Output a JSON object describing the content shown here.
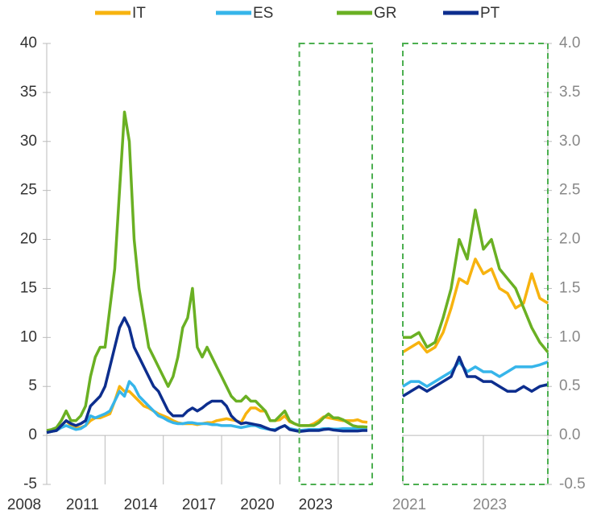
{
  "chart_data": [
    {
      "type": "line",
      "x": [
        2008,
        2008.25,
        2008.5,
        2008.75,
        2009,
        2009.25,
        2009.5,
        2009.75,
        2010,
        2010.25,
        2010.5,
        2010.75,
        2011,
        2011.25,
        2011.5,
        2011.75,
        2012,
        2012.25,
        2012.5,
        2012.75,
        2013,
        2013.25,
        2013.5,
        2013.75,
        2014,
        2014.25,
        2014.5,
        2014.75,
        2015,
        2015.25,
        2015.5,
        2015.75,
        2016,
        2016.25,
        2016.5,
        2016.75,
        2017,
        2017.25,
        2017.5,
        2017.75,
        2018,
        2018.25,
        2018.5,
        2018.75,
        2019,
        2019.25,
        2019.5,
        2019.75,
        2020,
        2020.25,
        2020.5,
        2020.75,
        2021,
        2021.25,
        2021.5,
        2021.75,
        2022,
        2022.25,
        2022.5,
        2022.75,
        2023,
        2023.25,
        2023.5,
        2023.75,
        2024,
        2024.25,
        2024.5
      ],
      "series": [
        {
          "name": "IT",
          "color": "#f7b30f",
          "values": [
            0.3,
            0.4,
            0.5,
            1.0,
            1.5,
            1.0,
            0.8,
            0.8,
            1.0,
            1.5,
            1.8,
            1.8,
            2,
            2.2,
            3.5,
            5,
            4.5,
            4.5,
            4,
            3.5,
            3,
            2.8,
            2.5,
            2.2,
            2,
            1.8,
            1.5,
            1.3,
            1.2,
            1.2,
            1.2,
            1.1,
            1.2,
            1.3,
            1.3,
            1.5,
            1.6,
            1.7,
            1.6,
            1.5,
            1.3,
            2.2,
            2.8,
            2.8,
            2.5,
            2.5,
            1.5,
            1.5,
            1.6,
            2.0,
            1.4,
            1.2,
            1.0,
            1.0,
            1.0,
            1.2,
            1.5,
            1.9,
            1.8,
            1.7,
            1.6,
            1.5,
            1.5,
            1.5,
            1.6,
            1.4,
            1.35
          ]
        },
        {
          "name": "ES",
          "color": "#36b5ea",
          "values": [
            0.3,
            0.4,
            0.5,
            0.8,
            1.0,
            0.8,
            0.6,
            0.7,
            1.0,
            2.0,
            1.8,
            2.0,
            2.2,
            2.5,
            3.5,
            4.5,
            4,
            5.5,
            5,
            4,
            3.5,
            3,
            2.5,
            2,
            1.8,
            1.5,
            1.3,
            1.2,
            1.2,
            1.3,
            1.3,
            1.2,
            1.2,
            1.2,
            1.1,
            1.1,
            1.0,
            1.0,
            1.0,
            0.9,
            0.8,
            0.9,
            1.0,
            1.0,
            0.8,
            0.7,
            0.6,
            0.6,
            0.8,
            1.0,
            0.7,
            0.6,
            0.5,
            0.55,
            0.6,
            0.6,
            0.6,
            0.7,
            0.7,
            0.65,
            0.65,
            0.7,
            0.7,
            0.7,
            0.72,
            0.75,
            0.75
          ]
        },
        {
          "name": "GR",
          "color": "#6ab023",
          "values": [
            0.5,
            0.6,
            0.8,
            1.5,
            2.5,
            1.5,
            1.5,
            2.0,
            3,
            6,
            8,
            9,
            9,
            13,
            17,
            25,
            33,
            30,
            20,
            15,
            12,
            9,
            8,
            7,
            6,
            5,
            6,
            8,
            11,
            12,
            15,
            9,
            8,
            9,
            8,
            7,
            6,
            5,
            4,
            3.5,
            3.5,
            4,
            3.5,
            3.5,
            3,
            2.5,
            1.5,
            1.5,
            2,
            2.5,
            1.5,
            1.2,
            1,
            1,
            1,
            1,
            1.3,
            1.8,
            2.2,
            1.8,
            1.8,
            1.6,
            1.3,
            1.0,
            0.9,
            0.9,
            0.85
          ]
        },
        {
          "name": "PT",
          "color": "#0d2e8e",
          "values": [
            0.3,
            0.4,
            0.5,
            1.0,
            1.5,
            1.2,
            1.0,
            1.2,
            1.5,
            3,
            3.5,
            4,
            5,
            7,
            9,
            11,
            12,
            11,
            9,
            8,
            7,
            6,
            5,
            4.5,
            3.5,
            2.5,
            2,
            2,
            2,
            2.5,
            2.8,
            2.5,
            2.8,
            3.2,
            3.5,
            3.5,
            3.5,
            3,
            2,
            1.5,
            1.2,
            1.3,
            1.2,
            1.1,
            1.0,
            0.8,
            0.6,
            0.5,
            0.8,
            1.0,
            0.6,
            0.5,
            0.4,
            0.45,
            0.5,
            0.5,
            0.5,
            0.6,
            0.65,
            0.55,
            0.5,
            0.45,
            0.45,
            0.45,
            0.45,
            0.5,
            0.5
          ]
        }
      ],
      "xlim": [
        2008,
        2024.75
      ],
      "xticks": [
        2008,
        2011,
        2014,
        2017,
        2020,
        2023
      ],
      "ylim": [
        -5,
        40
      ],
      "yticks": [
        -5,
        0,
        5,
        10,
        15,
        20,
        25,
        30,
        35,
        40
      ]
    },
    {
      "type": "line",
      "x": [
        2021,
        2021.2,
        2021.4,
        2021.6,
        2021.8,
        2022,
        2022.2,
        2022.4,
        2022.6,
        2022.8,
        2023,
        2023.2,
        2023.4,
        2023.6,
        2023.8,
        2024,
        2024.2,
        2024.4,
        2024.6
      ],
      "series": [
        {
          "color": "#f7b30f",
          "values": [
            0.85,
            0.9,
            0.95,
            0.85,
            0.9,
            1.05,
            1.3,
            1.6,
            1.55,
            1.8,
            1.65,
            1.7,
            1.5,
            1.45,
            1.3,
            1.35,
            1.65,
            1.4,
            1.35
          ]
        },
        {
          "color": "#36b5ea",
          "values": [
            0.5,
            0.55,
            0.55,
            0.5,
            0.55,
            0.6,
            0.65,
            0.75,
            0.65,
            0.7,
            0.65,
            0.65,
            0.6,
            0.65,
            0.7,
            0.7,
            0.7,
            0.72,
            0.75
          ]
        },
        {
          "color": "#6ab023",
          "values": [
            1.0,
            1.0,
            1.05,
            0.9,
            0.95,
            1.2,
            1.5,
            2.0,
            1.8,
            2.3,
            1.9,
            2.0,
            1.7,
            1.6,
            1.5,
            1.3,
            1.1,
            0.95,
            0.85
          ]
        },
        {
          "color": "#0d2e8e",
          "values": [
            0.4,
            0.45,
            0.5,
            0.45,
            0.5,
            0.55,
            0.6,
            0.8,
            0.6,
            0.6,
            0.55,
            0.55,
            0.5,
            0.45,
            0.45,
            0.5,
            0.45,
            0.5,
            0.52
          ]
        }
      ],
      "xlim": [
        2021,
        2024.6
      ],
      "xticks": [
        2021,
        2023
      ],
      "ylim": [
        -0.5,
        4
      ],
      "yticks": [
        {
          "value": -0.5,
          "label": "-0.5"
        },
        {
          "value": 0,
          "label": "0.0"
        },
        {
          "value": 0.5,
          "label": "0.5"
        },
        {
          "value": 1,
          "label": "1.0"
        },
        {
          "value": 1.5,
          "label": "1.5"
        },
        {
          "value": 2,
          "label": "2.0"
        },
        {
          "value": 2.5,
          "label": "2.5"
        },
        {
          "value": 3,
          "label": "3.0"
        },
        {
          "value": 3.5,
          "label": "3.5"
        },
        {
          "value": 4,
          "label": "4.0"
        }
      ]
    }
  ]
}
